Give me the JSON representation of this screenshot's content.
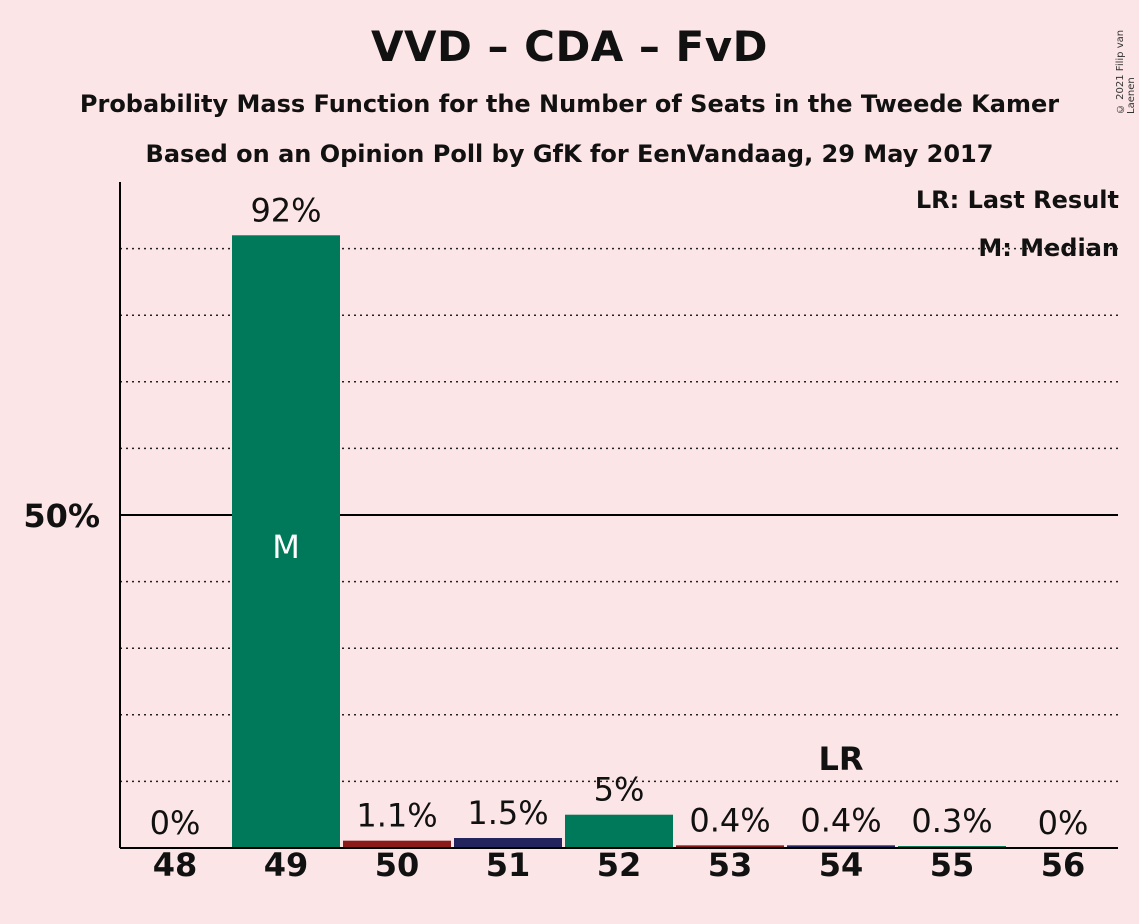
{
  "title": "VVD – CDA – FvD",
  "subtitle": "Probability Mass Function for the Number of Seats in the Tweede Kamer",
  "subtitle2": "Based on an Opinion Poll by GfK for EenVandaag, 29 May 2017",
  "copyright": "© 2021 Filip van Laenen",
  "legend": {
    "last_result": "LR: Last Result",
    "median": "M: Median"
  },
  "chart_data": {
    "type": "bar",
    "categories": [
      "48",
      "49",
      "50",
      "51",
      "52",
      "53",
      "54",
      "55",
      "56"
    ],
    "values": [
      0,
      92,
      1.1,
      1.5,
      5,
      0.4,
      0.4,
      0.3,
      0
    ],
    "labels": [
      "0%",
      "92%",
      "1.1%",
      "1.5%",
      "5%",
      "0.4%",
      "0.4%",
      "0.3%",
      "0%"
    ],
    "colors": [
      "#00785A",
      "#00785A",
      "#8B1A1A",
      "#23235E",
      "#00785A",
      "#8B1A1A",
      "#23235E",
      "#00785A",
      "#00785A"
    ],
    "ylim": [
      0,
      100
    ],
    "ytick_label": "50%",
    "ytick_value": 50,
    "median_seat": "49",
    "median_mark": "M",
    "last_result_seat": "54",
    "last_result_mark": "LR",
    "grid": true
  }
}
